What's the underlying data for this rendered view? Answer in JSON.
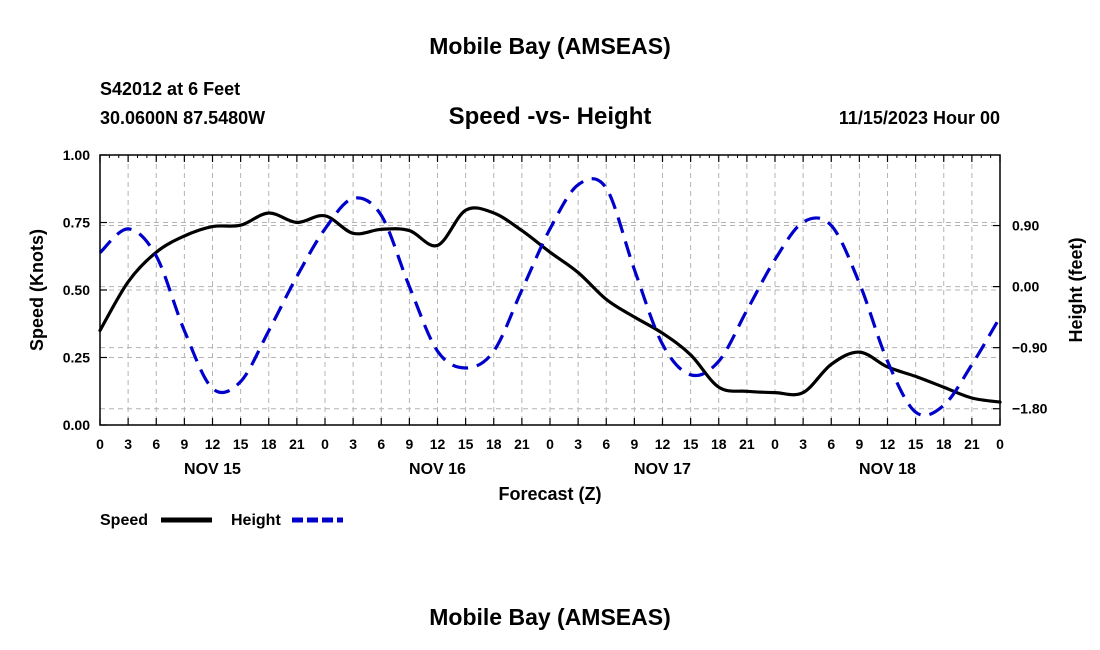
{
  "header": {
    "title": "Mobile Bay (AMSEAS)",
    "station": "S42012 at 6 Feet",
    "coords": "30.0600N  87.5480W",
    "timestamp": "11/15/2023 Hour 00",
    "footer_title": "Mobile Bay (AMSEAS)"
  },
  "chart_data": {
    "type": "line",
    "title": "Speed -vs- Height",
    "xlabel": "Forecast (Z)",
    "ylabel": "Speed (Knots)",
    "y2label": "Height (feet)",
    "x_unit": "hours since 11/15/2023 00Z",
    "xlim": [
      0,
      96
    ],
    "ylim": [
      0,
      1
    ],
    "y2lim": [
      -2.04,
      1.94
    ],
    "x_ticks": [
      0,
      3,
      6,
      9,
      12,
      15,
      18,
      21,
      24,
      27,
      30,
      33,
      36,
      39,
      42,
      45,
      48,
      51,
      54,
      57,
      60,
      63,
      66,
      69,
      72,
      75,
      78,
      81,
      84,
      87,
      90,
      93,
      96
    ],
    "x_tick_labels": [
      "0",
      "3",
      "6",
      "9",
      "12",
      "15",
      "18",
      "21",
      "0",
      "3",
      "6",
      "9",
      "12",
      "15",
      "18",
      "21",
      "0",
      "3",
      "6",
      "9",
      "12",
      "15",
      "18",
      "21",
      "0",
      "3",
      "6",
      "9",
      "12",
      "15",
      "18",
      "21",
      "0"
    ],
    "date_labels": [
      {
        "x": 12,
        "label": "NOV 15"
      },
      {
        "x": 36,
        "label": "NOV 16"
      },
      {
        "x": 60,
        "label": "NOV 17"
      },
      {
        "x": 84,
        "label": "NOV 18"
      }
    ],
    "y_ticks": [
      0.0,
      0.25,
      0.5,
      0.75,
      1.0
    ],
    "y_tick_labels": [
      "0.00",
      "0.25",
      "0.50",
      "0.75",
      "1.00"
    ],
    "y2_ticks": [
      0.9,
      0.0,
      -0.9,
      -1.8
    ],
    "y2_tick_labels": [
      "0.90",
      "0.00",
      "−0.90",
      "−1.80"
    ],
    "grid": true,
    "series": [
      {
        "name": "Speed",
        "axis": "left",
        "color": "#000000",
        "style": "solid",
        "x": [
          0,
          3,
          6,
          9,
          12,
          15,
          18,
          21,
          24,
          27,
          30,
          33,
          36,
          39,
          42,
          45,
          48,
          51,
          54,
          57,
          60,
          63,
          66,
          69,
          72,
          75,
          78,
          81,
          84,
          87,
          90,
          93,
          96
        ],
        "values": [
          0.35,
          0.53,
          0.64,
          0.7,
          0.735,
          0.74,
          0.785,
          0.75,
          0.775,
          0.71,
          0.725,
          0.72,
          0.665,
          0.795,
          0.785,
          0.72,
          0.64,
          0.565,
          0.465,
          0.4,
          0.34,
          0.26,
          0.14,
          0.125,
          0.12,
          0.12,
          0.225,
          0.27,
          0.215,
          0.18,
          0.14,
          0.1,
          0.085
        ]
      },
      {
        "name": "Height",
        "axis": "right",
        "color": "#0000cc",
        "style": "dashed",
        "x": [
          0,
          3,
          6,
          9,
          12,
          15,
          18,
          21,
          24,
          27,
          30,
          33,
          36,
          39,
          42,
          45,
          48,
          51,
          54,
          57,
          60,
          63,
          66,
          69,
          72,
          75,
          78,
          81,
          84,
          87,
          90,
          93,
          96
        ],
        "values": [
          0.5,
          0.85,
          0.45,
          -0.65,
          -1.5,
          -1.4,
          -0.65,
          0.15,
          0.85,
          1.3,
          1.05,
          0.0,
          -0.95,
          -1.2,
          -0.95,
          -0.05,
          0.85,
          1.5,
          1.45,
          0.25,
          -0.85,
          -1.3,
          -1.1,
          -0.35,
          0.4,
          0.95,
          0.9,
          0.05,
          -1.1,
          -1.85,
          -1.75,
          -1.15,
          -0.45
        ]
      }
    ]
  },
  "legend": [
    {
      "label": "Speed",
      "color": "#000000",
      "style": "solid"
    },
    {
      "label": "Height",
      "color": "#0000cc",
      "style": "dashed"
    }
  ]
}
